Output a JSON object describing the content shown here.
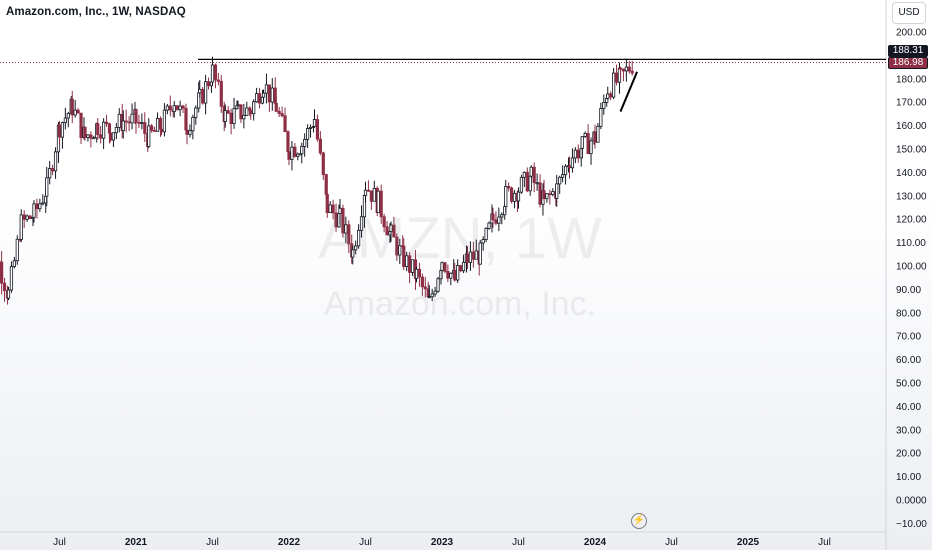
{
  "header": {
    "symbol_line": "Amazon.com, Inc., 1W, NASDAQ"
  },
  "currency_button": "USD",
  "watermark": {
    "line1": "AMZN, 1W",
    "line2": "Amazon.com, Inc."
  },
  "price_tags": {
    "resistance": "188.31",
    "last": "186.98"
  },
  "colors": {
    "up": "#131722",
    "down": "#8e2f45",
    "axis_text": "#131722",
    "grid": "#f0f3fa",
    "trend": "#000000"
  },
  "icons": {
    "replay": "lightning-icon"
  },
  "chart_data": {
    "type": "candlestick",
    "title": "Amazon.com, Inc., 1W, NASDAQ",
    "interval": "1W",
    "y_ticks": [
      "200.00",
      "190.00",
      "180.00",
      "170.00",
      "160.00",
      "150.00",
      "140.00",
      "130.00",
      "120.00",
      "110.00",
      "100.00",
      "90.00",
      "80.00",
      "70.00",
      "60.00",
      "50.00",
      "40.00",
      "30.00",
      "20.00",
      "10.00",
      "0.0000",
      "−10.00"
    ],
    "x_ticks": [
      "Jul",
      "2021",
      "Jul",
      "2022",
      "Jul",
      "2023",
      "Jul",
      "2024",
      "Jul",
      "2025",
      "Jul"
    ],
    "ylim": [
      -13,
      205
    ],
    "resistance_level": 188.31,
    "last_price": 186.98,
    "trendline": {
      "from": [
        "2024-03",
        "166"
      ],
      "to": [
        "2024-04",
        "183"
      ]
    },
    "candles_weekly_close": [
      {
        "date": "2020-01",
        "close": 95
      },
      {
        "date": "2020-02",
        "close": 105
      },
      {
        "date": "2020-03",
        "close": 88
      },
      {
        "date": "2020-04",
        "close": 118
      },
      {
        "date": "2020-05",
        "close": 122
      },
      {
        "date": "2020-06",
        "close": 133
      },
      {
        "date": "2020-07",
        "close": 160
      },
      {
        "date": "2020-08",
        "close": 168
      },
      {
        "date": "2020-09",
        "close": 155
      },
      {
        "date": "2020-10",
        "close": 160
      },
      {
        "date": "2020-11",
        "close": 158
      },
      {
        "date": "2020-12",
        "close": 162
      },
      {
        "date": "2021-01",
        "close": 162
      },
      {
        "date": "2021-02",
        "close": 155
      },
      {
        "date": "2021-03",
        "close": 160
      },
      {
        "date": "2021-04",
        "close": 171
      },
      {
        "date": "2021-05",
        "close": 160
      },
      {
        "date": "2021-06",
        "close": 171
      },
      {
        "date": "2021-07",
        "close": 183
      },
      {
        "date": "2021-08",
        "close": 164
      },
      {
        "date": "2021-09",
        "close": 165
      },
      {
        "date": "2021-10",
        "close": 167
      },
      {
        "date": "2021-11",
        "close": 178
      },
      {
        "date": "2021-12",
        "close": 168
      },
      {
        "date": "2022-01",
        "close": 150
      },
      {
        "date": "2022-02",
        "close": 152
      },
      {
        "date": "2022-03",
        "close": 163
      },
      {
        "date": "2022-04",
        "close": 125
      },
      {
        "date": "2022-05",
        "close": 120
      },
      {
        "date": "2022-06",
        "close": 106
      },
      {
        "date": "2022-07",
        "close": 135
      },
      {
        "date": "2022-08",
        "close": 127
      },
      {
        "date": "2022-09",
        "close": 113
      },
      {
        "date": "2022-10",
        "close": 103
      },
      {
        "date": "2022-11",
        "close": 96
      },
      {
        "date": "2022-12",
        "close": 84
      },
      {
        "date": "2023-01",
        "close": 103
      },
      {
        "date": "2023-02",
        "close": 94
      },
      {
        "date": "2023-03",
        "close": 103
      },
      {
        "date": "2023-04",
        "close": 105
      },
      {
        "date": "2023-05",
        "close": 120
      },
      {
        "date": "2023-06",
        "close": 130
      },
      {
        "date": "2023-07",
        "close": 133
      },
      {
        "date": "2023-08",
        "close": 138
      },
      {
        "date": "2023-09",
        "close": 127
      },
      {
        "date": "2023-10",
        "close": 133
      },
      {
        "date": "2023-11",
        "close": 146
      },
      {
        "date": "2023-12",
        "close": 151
      },
      {
        "date": "2024-01",
        "close": 155
      },
      {
        "date": "2024-02",
        "close": 176
      },
      {
        "date": "2024-03",
        "close": 180
      },
      {
        "date": "2024-04",
        "close": 187
      }
    ]
  }
}
